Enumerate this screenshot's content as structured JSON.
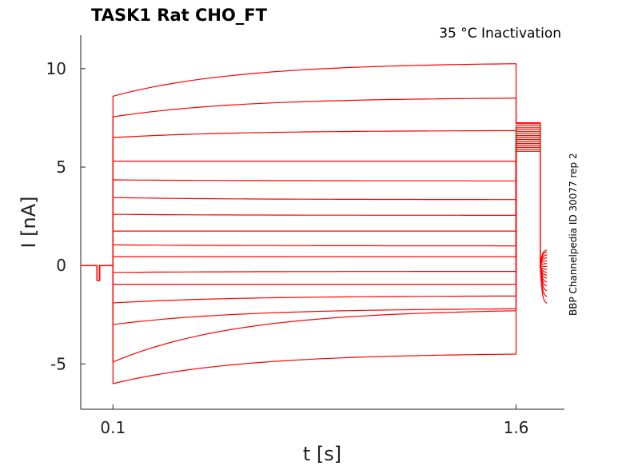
{
  "chart_data": {
    "type": "line",
    "title": "TASK1  Rat  CHO_FT",
    "annotation": "35 °C  Inactivation",
    "side_label": "BBP Channelpedia ID 30077 rep 2",
    "xlabel": "t [s]",
    "ylabel": "I [nA]",
    "xlim": [
      -0.02,
      1.78
    ],
    "ylim": [
      -7.3,
      11.7
    ],
    "xticks": [
      {
        "value": 0.1,
        "label": "0.1"
      },
      {
        "value": 1.6,
        "label": "1.6"
      }
    ],
    "yticks": [
      {
        "value": -5,
        "label": "-5"
      },
      {
        "value": 0,
        "label": "0"
      },
      {
        "value": 5,
        "label": "5"
      },
      {
        "value": 10,
        "label": "10"
      }
    ],
    "grid": false,
    "series_color": "#ff0000",
    "step_start": 0.1,
    "step_end": 1.6,
    "trace_end": 1.715,
    "prepulse_dip": {
      "t0": 0.04,
      "t1": 0.05,
      "value": -0.75
    },
    "series": [
      {
        "start": 8.6,
        "plateau": 10.25,
        "post": 7.25,
        "tail": 0.8
      },
      {
        "start": 7.55,
        "plateau": 8.5,
        "post": 7.2,
        "tail": 0.7
      },
      {
        "start": 6.5,
        "plateau": 6.85,
        "post": 7.1,
        "tail": 0.55
      },
      {
        "start": 5.3,
        "plateau": 5.3,
        "post": 7.0,
        "tail": 0.4
      },
      {
        "start": 4.35,
        "plateau": 4.3,
        "post": 6.9,
        "tail": 0.25
      },
      {
        "start": 3.45,
        "plateau": 3.35,
        "post": 6.8,
        "tail": 0.1
      },
      {
        "start": 2.6,
        "plateau": 2.55,
        "post": 6.7,
        "tail": -0.05
      },
      {
        "start": 1.75,
        "plateau": 1.75,
        "post": 6.6,
        "tail": -0.2
      },
      {
        "start": 1.05,
        "plateau": 1.0,
        "post": 6.5,
        "tail": -0.35
      },
      {
        "start": 0.45,
        "plateau": 0.45,
        "post": 6.4,
        "tail": -0.5
      },
      {
        "start": -0.35,
        "plateau": -0.3,
        "post": 6.3,
        "tail": -0.65
      },
      {
        "start": -0.95,
        "plateau": -0.95,
        "post": 6.2,
        "tail": -0.85
      },
      {
        "start": -1.9,
        "plateau": -1.55,
        "post": 6.1,
        "tail": -1.05
      },
      {
        "start": -3.0,
        "plateau": -2.2,
        "post": 6.0,
        "tail": -1.3
      },
      {
        "start": -4.9,
        "plateau": -2.3,
        "post": 5.9,
        "tail": -1.6
      },
      {
        "start": -6.0,
        "plateau": -4.5,
        "post": 5.8,
        "tail": -1.95
      }
    ]
  }
}
